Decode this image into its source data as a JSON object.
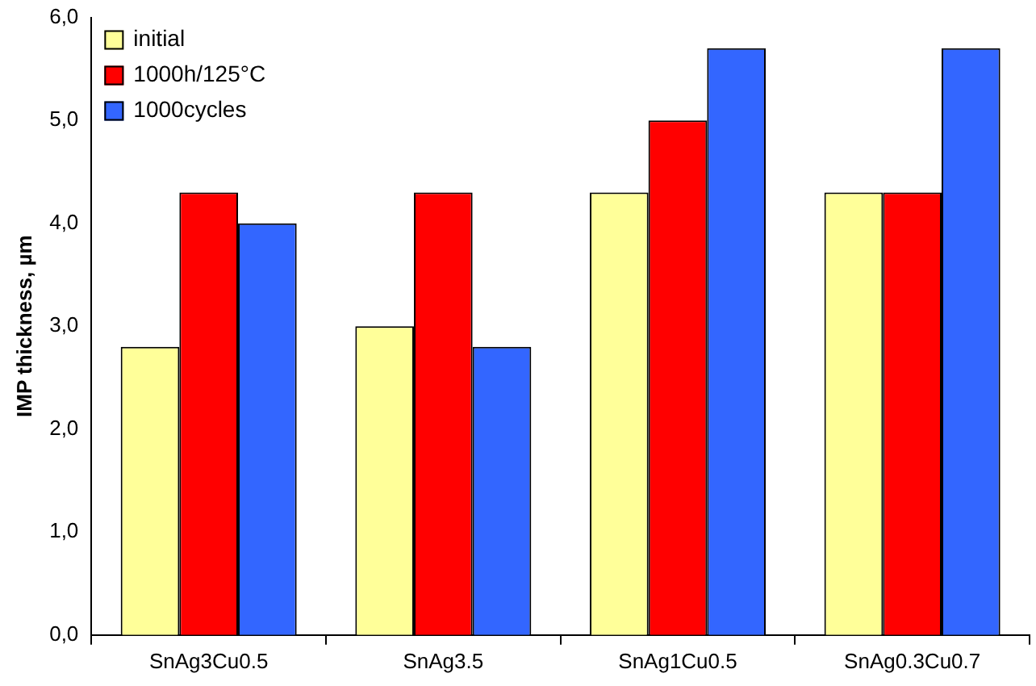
{
  "chart_data": {
    "type": "bar",
    "ylabel": "IMP thickness, µm",
    "categories": [
      "SnAg3Cu0.5",
      "SnAg3.5",
      "SnAg1Cu0.5",
      "SnAg0.3Cu0.7"
    ],
    "series": [
      {
        "name": "initial",
        "color": "#ffff99",
        "values": [
          2.8,
          3.0,
          4.3,
          4.3
        ]
      },
      {
        "name": "1000h/125°C",
        "color": "#ff0000",
        "values": [
          4.3,
          4.3,
          5.0,
          4.3
        ]
      },
      {
        "name": "1000cycles",
        "color": "#3366ff",
        "values": [
          4.0,
          2.8,
          5.7,
          5.7
        ]
      }
    ],
    "ylim": [
      0,
      6
    ],
    "yticks": [
      {
        "value": 0,
        "label": "0,0"
      },
      {
        "value": 1,
        "label": "1,0"
      },
      {
        "value": 2,
        "label": "2,0"
      },
      {
        "value": 3,
        "label": "3,0"
      },
      {
        "value": 4,
        "label": "4,0"
      },
      {
        "value": 5,
        "label": "5,0"
      },
      {
        "value": 6,
        "label": "6,0"
      }
    ],
    "grid": false,
    "legend": "top left"
  }
}
